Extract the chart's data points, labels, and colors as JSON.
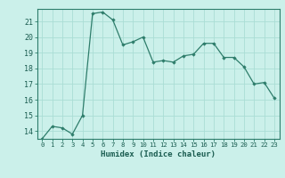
{
  "x": [
    0,
    1,
    2,
    3,
    4,
    5,
    6,
    7,
    8,
    9,
    10,
    11,
    12,
    13,
    14,
    15,
    16,
    17,
    18,
    19,
    20,
    21,
    22,
    23
  ],
  "y": [
    13.5,
    14.3,
    14.2,
    13.8,
    15.0,
    21.5,
    21.6,
    21.1,
    19.5,
    19.7,
    20.0,
    18.4,
    18.5,
    18.4,
    18.8,
    18.9,
    19.6,
    19.6,
    18.7,
    18.7,
    18.1,
    17.0,
    17.1,
    16.1
  ],
  "line_color": "#2E7D6B",
  "marker_color": "#2E7D6B",
  "bg_color": "#CBF0EA",
  "grid_color": "#AADDD5",
  "xlabel": "Humidex (Indice chaleur)",
  "xlim": [
    -0.5,
    23.5
  ],
  "ylim": [
    13.5,
    21.8
  ],
  "yticks": [
    14,
    15,
    16,
    17,
    18,
    19,
    20,
    21
  ],
  "xticks": [
    0,
    1,
    2,
    3,
    4,
    5,
    6,
    7,
    8,
    9,
    10,
    11,
    12,
    13,
    14,
    15,
    16,
    17,
    18,
    19,
    20,
    21,
    22,
    23
  ]
}
